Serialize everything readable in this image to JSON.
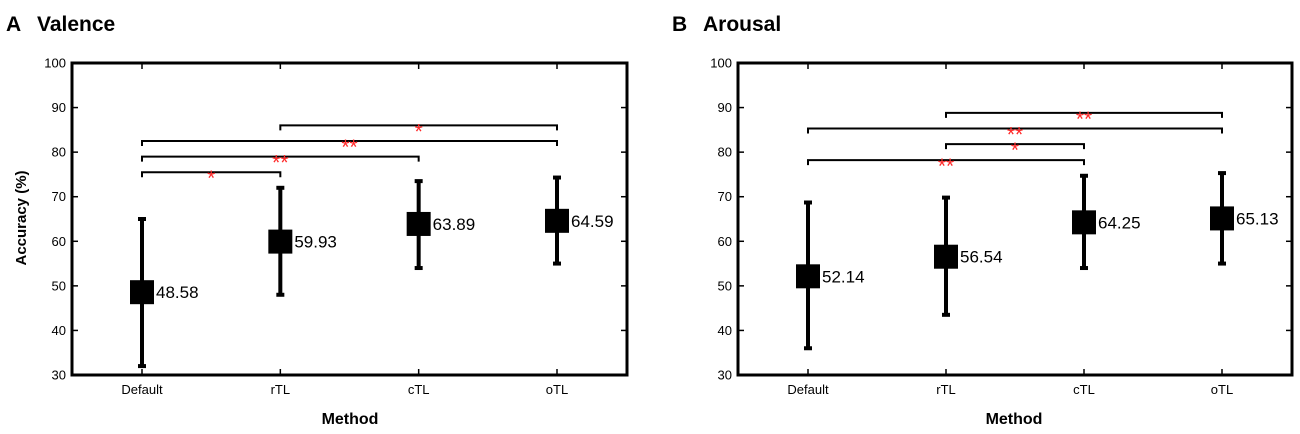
{
  "figure": {
    "ylabel": "Accuracy (%)",
    "xlabel": "Method",
    "axis_color": "#000000",
    "star_color": "#ff2a2a"
  },
  "chart_data": [
    {
      "type": "scatter",
      "panel_letter": "A",
      "title": "Valence",
      "xlabel": "Method",
      "ylabel": "Accuracy (%)",
      "categories": [
        "Default",
        "rTL",
        "cTL",
        "oTL"
      ],
      "ylim": [
        30,
        100
      ],
      "yticks": [
        30,
        40,
        50,
        60,
        70,
        80,
        90,
        100
      ],
      "grid": false,
      "series": [
        {
          "values": [
            48.58,
            59.93,
            63.89,
            64.59
          ],
          "labels": [
            "48.58",
            "59.93",
            "63.89",
            "64.59"
          ],
          "lower": [
            32,
            48,
            54,
            55
          ],
          "upper": [
            65,
            72,
            73.5,
            74.3
          ]
        }
      ],
      "significance": [
        {
          "from": 0,
          "to": 1,
          "y": 75.5,
          "stars": "*"
        },
        {
          "from": 0,
          "to": 2,
          "y": 79,
          "stars": "**"
        },
        {
          "from": 0,
          "to": 3,
          "y": 82.5,
          "stars": "**"
        },
        {
          "from": 1,
          "to": 3,
          "y": 86,
          "stars": "*"
        }
      ]
    },
    {
      "type": "scatter",
      "panel_letter": "B",
      "title": "Arousal",
      "xlabel": "Method",
      "ylabel": "",
      "categories": [
        "Default",
        "rTL",
        "cTL",
        "oTL"
      ],
      "ylim": [
        30,
        100
      ],
      "yticks": [
        30,
        40,
        50,
        60,
        70,
        80,
        90,
        100
      ],
      "grid": false,
      "series": [
        {
          "values": [
            52.14,
            56.54,
            64.25,
            65.13
          ],
          "labels": [
            "52.14",
            "56.54",
            "64.25",
            "65.13"
          ],
          "lower": [
            36,
            43.5,
            54,
            55
          ],
          "upper": [
            68.7,
            69.8,
            74.7,
            75.3
          ]
        }
      ],
      "significance": [
        {
          "from": 0,
          "to": 2,
          "y": 78.2,
          "stars": "**"
        },
        {
          "from": 1,
          "to": 2,
          "y": 81.8,
          "stars": "*"
        },
        {
          "from": 0,
          "to": 3,
          "y": 85.3,
          "stars": "**"
        },
        {
          "from": 1,
          "to": 3,
          "y": 88.8,
          "stars": "**"
        }
      ]
    }
  ]
}
